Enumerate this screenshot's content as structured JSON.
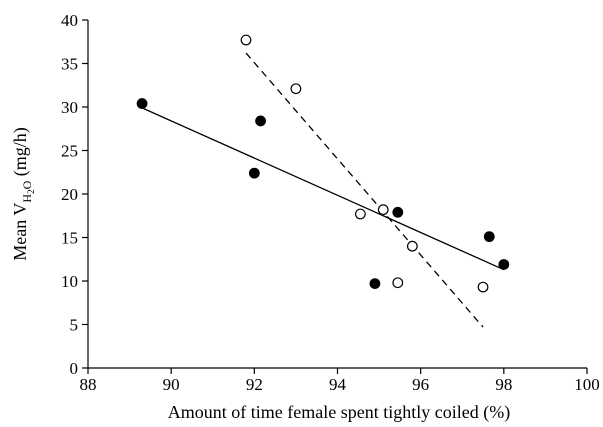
{
  "chart_data": {
    "type": "scatter",
    "title": "",
    "xlabel": "Amount of time female spent tightly coiled (%)",
    "ylabel": {
      "prefix": "Mean ",
      "symbol": "V",
      "subscript": "H",
      "subscript_2": "2",
      "subscript_3": "O",
      "suffix": " (mg/h)"
    },
    "xlim": [
      88,
      100
    ],
    "ylim": [
      0,
      40
    ],
    "xticks": [
      88,
      90,
      92,
      94,
      96,
      98,
      100
    ],
    "yticks": [
      0,
      5,
      10,
      15,
      20,
      25,
      30,
      35,
      40
    ],
    "grid": false,
    "legend": "none",
    "series": [
      {
        "marker": "filled-circle",
        "color": "#000000",
        "points": [
          {
            "x": 89.3,
            "y": 30.4
          },
          {
            "x": 92.0,
            "y": 22.4
          },
          {
            "x": 92.15,
            "y": 28.4
          },
          {
            "x": 94.9,
            "y": 9.7
          },
          {
            "x": 95.45,
            "y": 17.9
          },
          {
            "x": 97.65,
            "y": 15.1
          },
          {
            "x": 98.0,
            "y": 11.9
          }
        ],
        "fit": {
          "style": "solid",
          "x": [
            89.3,
            98.0
          ],
          "y": [
            29.9,
            11.3
          ]
        }
      },
      {
        "marker": "open-circle",
        "color": "#000000",
        "points": [
          {
            "x": 91.8,
            "y": 37.7
          },
          {
            "x": 93.0,
            "y": 32.1
          },
          {
            "x": 94.55,
            "y": 17.7
          },
          {
            "x": 95.1,
            "y": 18.2
          },
          {
            "x": 95.45,
            "y": 9.8
          },
          {
            "x": 95.8,
            "y": 14.0
          },
          {
            "x": 97.5,
            "y": 9.3
          }
        ],
        "fit": {
          "style": "dashed",
          "x": [
            91.8,
            97.5
          ],
          "y": [
            36.2,
            4.7
          ]
        }
      }
    ]
  }
}
